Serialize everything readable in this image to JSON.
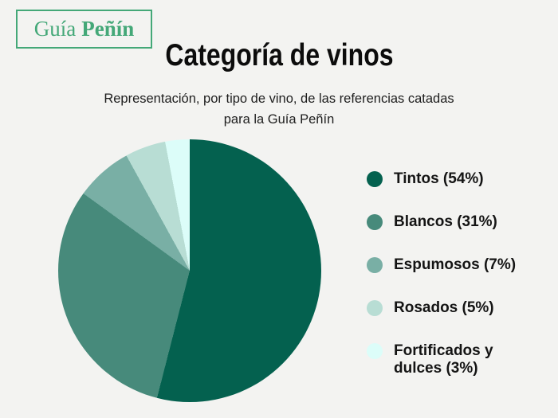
{
  "page": {
    "background": "#f3f3f1",
    "logo": {
      "prefix": "Guía",
      "brand": "Peñín",
      "color": "#44a878"
    },
    "title": "Categoría de vinos",
    "subtitle_line1": "Representación, por tipo de vino, de las referencias catadas",
    "subtitle_line2": "para la Guía Peñín"
  },
  "chart_data": {
    "type": "pie",
    "title": "Categoría de vinos",
    "subtitle": "Representación, por tipo de vino, de las referencias catadas para la Guía Peñín",
    "start_angle_deg": 0,
    "direction": "clockwise",
    "legend_position": "right",
    "slices": [
      {
        "name": "Tintos",
        "value_pct": 54,
        "color": "#04614f",
        "label": "Tintos (54%)"
      },
      {
        "name": "Blancos",
        "value_pct": 31,
        "color": "#478a7b",
        "label": "Blancos (31%)"
      },
      {
        "name": "Espumosos",
        "value_pct": 7,
        "color": "#79afa5",
        "label": "Espumosos (7%)"
      },
      {
        "name": "Rosados",
        "value_pct": 5,
        "color": "#b8ddd4",
        "label": "Rosados (5%)"
      },
      {
        "name": "Fortificados y dulces",
        "value_pct": 3,
        "color": "#dcfdf9",
        "label": "Fortificados y dulces (3%)"
      }
    ]
  }
}
